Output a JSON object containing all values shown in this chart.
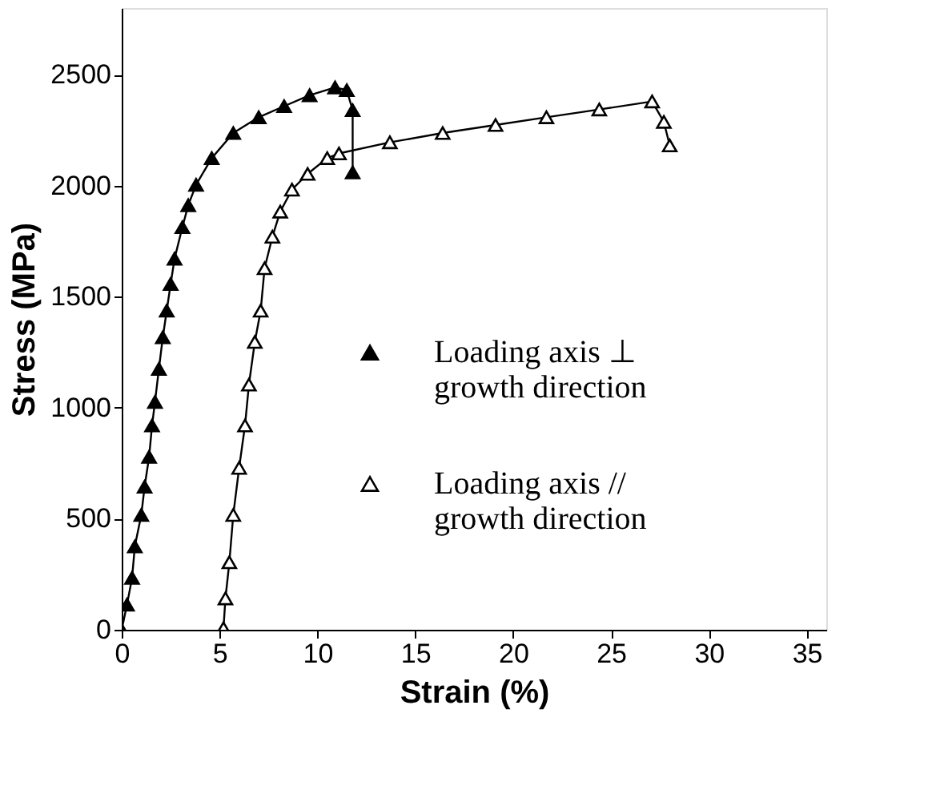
{
  "chart_data": {
    "type": "line",
    "xlabel": "Strain (%)",
    "ylabel": "Stress (MPa)",
    "xlim": [
      0,
      36
    ],
    "ylim": [
      0,
      2800
    ],
    "xticks": [
      0,
      5,
      10,
      15,
      20,
      25,
      30,
      35
    ],
    "yticks": [
      0,
      500,
      1000,
      1500,
      2000,
      2500
    ],
    "grid": false,
    "legend": "right",
    "marker": "triangle",
    "line_style": "solid",
    "series": [
      {
        "name": "Loading axis ⊥ growth direction",
        "color": "#000000",
        "x": [
          0,
          0.27,
          0.53,
          0.67,
          1.0,
          1.17,
          1.4,
          1.55,
          1.7,
          1.9,
          2.1,
          2.3,
          2.5,
          2.7,
          3.1,
          3.4,
          3.8,
          4.6,
          5.7,
          7.0,
          8.3,
          9.6,
          10.9,
          11.5,
          11.8,
          11.8
        ],
        "values": [
          0,
          113,
          234,
          375,
          517,
          644,
          779,
          920,
          1026,
          1175,
          1317,
          1437,
          1557,
          1671,
          1813,
          1912,
          2004,
          2124,
          2237,
          2308,
          2358,
          2407,
          2442,
          2430,
          2340,
          2060
        ]
      },
      {
        "name": "Loading axis // growth direction",
        "color": "#000000",
        "x": [
          5.2,
          5.3,
          5.5,
          5.7,
          6.0,
          6.3,
          6.5,
          6.8,
          7.1,
          7.3,
          7.7,
          8.1,
          8.7,
          9.5,
          10.5,
          11.1,
          13.7,
          16.4,
          19.1,
          21.7,
          24.4,
          27.1,
          27.7,
          28.0
        ],
        "values": [
          7,
          141,
          304,
          517,
          729,
          920,
          1104,
          1296,
          1437,
          1628,
          1770,
          1883,
          1982,
          2053,
          2124,
          2145,
          2195,
          2237,
          2273,
          2308,
          2343,
          2379,
          2287,
          2181
        ]
      }
    ]
  }
}
